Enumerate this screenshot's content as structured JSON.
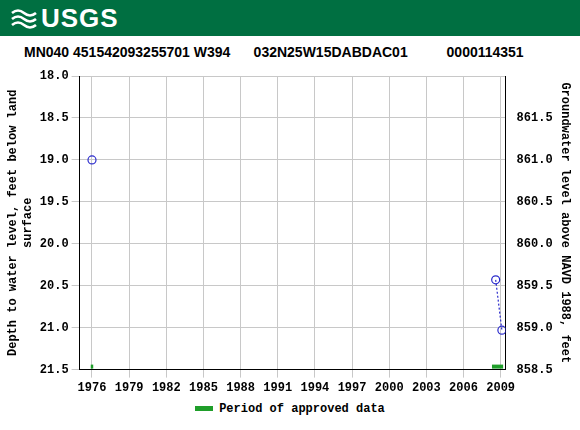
{
  "header": {
    "logo_text": "USGS"
  },
  "chart_data": {
    "type": "scatter",
    "title": "MN040 451542093255701 W394      032N25W15DABDAC01          0000114351",
    "ylabel": [
      "Depth to water level, feet below land",
      "surface"
    ],
    "y2label": "Groundwater level above NAVD 1988, feet",
    "x": [
      1976.0,
      2008.6,
      2009.1
    ],
    "series": [
      {
        "color": "#2a2acc",
        "marker": "circle",
        "line_style": "dotted",
        "values": [
          19.0,
          null,
          null
        ]
      },
      {
        "color": "#2a2acc",
        "marker": "circle",
        "line_style": "dotted",
        "values": [
          null,
          20.43,
          21.03
        ]
      }
    ],
    "xlim": [
      1975.0,
      2009.4
    ],
    "xticks": [
      1976,
      1979,
      1982,
      1985,
      1988,
      1991,
      1994,
      1997,
      2000,
      2003,
      2006,
      2009
    ],
    "ylim": [
      18.0,
      21.5
    ],
    "yticks": [
      {
        "value": 18.0,
        "label": "18.0"
      },
      18.5,
      {
        "value": 19.0,
        "label": "19.0"
      },
      19.5,
      {
        "value": 20.0,
        "label": "20.0"
      },
      20.5,
      {
        "value": 21.0,
        "label": "21.0"
      },
      21.5
    ],
    "y_reversed": true,
    "y2lim": [
      858.5,
      862.0
    ],
    "y2ticks": [
      858.5,
      {
        "value": 859.0,
        "label": "859.0"
      },
      859.5,
      {
        "value": 860.0,
        "label": "860.0"
      },
      860.5,
      {
        "value": 861.0,
        "label": "861.0"
      },
      861.5
    ],
    "grid": true,
    "approved_periods": {
      "name": "Period of approved data",
      "color": "#1f9e2a",
      "ranges": [
        [
          1975.9,
          1976.1
        ],
        [
          2008.3,
          2009.2
        ]
      ]
    }
  }
}
